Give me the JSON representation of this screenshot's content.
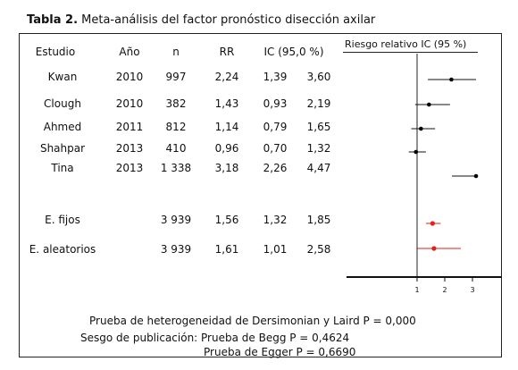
{
  "caption": {
    "number": "Tabla 2.",
    "text": "Meta-análisis del factor pronóstico disección axilar"
  },
  "header": {
    "estudio": "Estudio",
    "ano": "Año",
    "n": "n",
    "rr": "RR",
    "ic": "IC (95,0 %)",
    "riesgo": "Riesgo relativo IC (95 %)"
  },
  "rows": [
    {
      "estudio": "Kwan",
      "ano": "2010",
      "n": "997",
      "rr": "2,24",
      "lo": "1,39",
      "hi": "3,60"
    },
    {
      "estudio": "Clough",
      "ano": "2010",
      "n": "382",
      "rr": "1,43",
      "lo": "0,93",
      "hi": "2,19"
    },
    {
      "estudio": "Ahmed",
      "ano": "2011",
      "n": "812",
      "rr": "1,14",
      "lo": "0,79",
      "hi": "1,65"
    },
    {
      "estudio": "Shahpar",
      "ano": "2013",
      "n": "410",
      "rr": "0,96",
      "lo": "0,70",
      "hi": "1,32"
    },
    {
      "estudio": "Tina",
      "ano": "2013",
      "n": "1 338",
      "rr": "3,18",
      "lo": "2,26",
      "hi": "4,47"
    }
  ],
  "pooled": [
    {
      "estudio": "E. fijos",
      "n": "3 939",
      "rr": "1,56",
      "lo": "1,32",
      "hi": "1,85"
    },
    {
      "estudio": "E. aleatorios",
      "n": "3 939",
      "rr": "1,61",
      "lo": "1,01",
      "hi": "2,58"
    }
  ],
  "axis_ticks": [
    "1",
    "2",
    "3"
  ],
  "colors": {
    "study_marker": "#000000",
    "pooled_marker": "#e0201b"
  },
  "notes": {
    "heterogeneidad": "Prueba de heterogeneidad de Dersimonian y Laird P = 0,000",
    "begg": "Sesgo de publicación: Prueba de Begg  P = 0,4624",
    "egger": "Prueba de Egger P = 0,6690"
  }
}
